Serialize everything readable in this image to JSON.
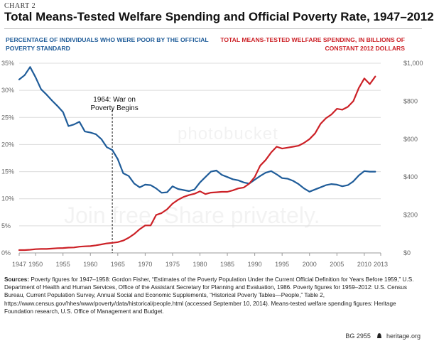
{
  "chart_tag": "CHART 2",
  "title": "Total Means-Tested Welfare Spending and Official Poverty Rate, 1947–2012",
  "watermark": {
    "line1": "photobucket",
    "line2": "Join free. Share privately."
  },
  "colors": {
    "poverty": "#1f5c99",
    "spending": "#cc2127",
    "grid": "#dcdcdc",
    "axis": "#666666"
  },
  "chart_data": {
    "type": "line",
    "left_axis_label": "PERCENTAGE OF INDIVIDUALS WHO WERE POOR BY THE OFFICIAL POVERTY STANDARD",
    "right_axis_label": "TOTAL MEANS-TESTED WELFARE SPENDING, IN BILLIONS OF CONSTANT 2012 DOLLARS",
    "x_ticks": [
      "1947",
      "1950",
      "1955",
      "1960",
      "1965",
      "1970",
      "1975",
      "1980",
      "1985",
      "1990",
      "1995",
      "2000",
      "2005",
      "2010",
      "2013"
    ],
    "x_range": [
      1947,
      2013
    ],
    "left_ticks": [
      "0%",
      "5%",
      "10%",
      "15%",
      "20%",
      "25%",
      "30%",
      "35%"
    ],
    "left_range": [
      0,
      35
    ],
    "right_ticks": [
      "$0",
      "$200",
      "$400",
      "$600",
      "$800",
      "$1,000"
    ],
    "right_range": [
      0,
      1000
    ],
    "grid": true,
    "annotation": {
      "text": "1964: War on Poverty Begins",
      "year": 1964
    },
    "series": [
      {
        "axis": "left",
        "x": [
          1947,
          1948,
          1949,
          1950,
          1951,
          1952,
          1953,
          1954,
          1955,
          1956,
          1957,
          1958,
          1959,
          1960,
          1961,
          1962,
          1963,
          1964,
          1965,
          1966,
          1967,
          1968,
          1969,
          1970,
          1971,
          1972,
          1973,
          1974,
          1975,
          1976,
          1977,
          1978,
          1979,
          1980,
          1981,
          1982,
          1983,
          1984,
          1985,
          1986,
          1987,
          1988,
          1989,
          1990,
          1991,
          1992,
          1993,
          1994,
          1995,
          1996,
          1997,
          1998,
          1999,
          2000,
          2001,
          2002,
          2003,
          2004,
          2005,
          2006,
          2007,
          2008,
          2009,
          2010,
          2011,
          2012
        ],
        "values": [
          32.0,
          32.8,
          34.3,
          32.4,
          30.2,
          29.2,
          28.1,
          27.1,
          26.0,
          23.4,
          23.7,
          24.2,
          22.4,
          22.2,
          21.9,
          21.0,
          19.5,
          19.0,
          17.3,
          14.7,
          14.2,
          12.8,
          12.1,
          12.6,
          12.5,
          11.9,
          11.1,
          11.2,
          12.3,
          11.8,
          11.6,
          11.4,
          11.7,
          13.0,
          14.0,
          15.0,
          15.2,
          14.4,
          14.0,
          13.6,
          13.4,
          13.0,
          12.8,
          13.5,
          14.2,
          14.8,
          15.1,
          14.5,
          13.8,
          13.7,
          13.3,
          12.7,
          11.9,
          11.3,
          11.7,
          12.1,
          12.5,
          12.7,
          12.6,
          12.3,
          12.5,
          13.2,
          14.3,
          15.1,
          15.0,
          15.0
        ]
      },
      {
        "axis": "right",
        "x": [
          1947,
          1948,
          1949,
          1950,
          1951,
          1952,
          1953,
          1954,
          1955,
          1956,
          1957,
          1958,
          1959,
          1960,
          1961,
          1962,
          1963,
          1964,
          1965,
          1966,
          1967,
          1968,
          1969,
          1970,
          1971,
          1972,
          1973,
          1974,
          1975,
          1976,
          1977,
          1978,
          1979,
          1980,
          1981,
          1982,
          1983,
          1984,
          1985,
          1986,
          1987,
          1988,
          1989,
          1990,
          1991,
          1992,
          1993,
          1994,
          1995,
          1996,
          1997,
          1998,
          1999,
          2000,
          2001,
          2002,
          2003,
          2004,
          2005,
          2006,
          2007,
          2008,
          2009,
          2010,
          2011,
          2012
        ],
        "values": [
          15,
          15,
          17,
          20,
          21,
          21,
          23,
          25,
          26,
          28,
          29,
          33,
          35,
          36,
          40,
          45,
          50,
          53,
          57,
          65,
          80,
          100,
          125,
          145,
          145,
          200,
          210,
          230,
          260,
          280,
          295,
          305,
          312,
          325,
          310,
          318,
          320,
          322,
          322,
          330,
          340,
          345,
          365,
          400,
          460,
          490,
          530,
          560,
          550,
          555,
          560,
          565,
          580,
          600,
          630,
          680,
          710,
          730,
          760,
          755,
          770,
          800,
          870,
          920,
          890,
          930
        ]
      }
    ]
  },
  "sources": {
    "label": "Sources:",
    "text": "Poverty figures for 1947–1958: Gordon Fisher, “Estimates of the Poverty Population Under the Current Official Definition for Years Before 1959,” U.S. Department of Health and Human Services, Office of the Assistant Secretary for Planning and Evaluation, 1986. Poverty figures for 1959–2012: U.S. Census Bureau, Current Population Survey, Annual Social and Economic Supplements, “Historical Poverty Tables—People,” Table 2, https://www.census.gov/hhes/www/poverty/data/historical/people.html (accessed September 10, 2014). Means-tested welfare spending figures: Heritage Foundation research, U.S. Office of Management and Budget."
  },
  "footer": {
    "code": "BG 2955",
    "site": "heritage.org"
  }
}
